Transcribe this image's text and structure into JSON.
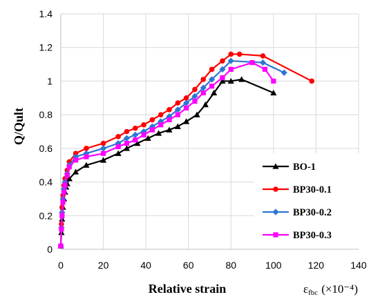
{
  "chart_data": {
    "type": "line",
    "title": "",
    "xlabel": "Relative strain",
    "ylabel": "Q/Qult",
    "xunit": {
      "symbol": "ε",
      "subscript": "fbc",
      "suffix": "(×10⁻⁴)"
    },
    "xlim": [
      0,
      140
    ],
    "ylim": [
      0,
      1.4
    ],
    "xticks": [
      "0",
      "20",
      "40",
      "60",
      "80",
      "100",
      "120",
      "140"
    ],
    "yticks": [
      "0",
      "0.2",
      "0.4",
      "0.6",
      "0.8",
      "1",
      "1.2",
      "1.4"
    ],
    "grid": true,
    "legend_position": "bottom-right",
    "series": [
      {
        "name": "BO-1",
        "color": "#000000",
        "marker": "triangle",
        "x": [
          0,
          0.3,
          0.6,
          1,
          1.5,
          2,
          2.5,
          3,
          4,
          7,
          12,
          20,
          27,
          31,
          36,
          41,
          46,
          51,
          55,
          59,
          64,
          68,
          72,
          76,
          80,
          85,
          100
        ],
        "y": [
          0.02,
          0.1,
          0.18,
          0.25,
          0.3,
          0.34,
          0.37,
          0.39,
          0.42,
          0.46,
          0.5,
          0.53,
          0.57,
          0.6,
          0.63,
          0.66,
          0.69,
          0.71,
          0.73,
          0.76,
          0.8,
          0.86,
          0.93,
          1.0,
          1.0,
          1.01,
          0.93
        ]
      },
      {
        "name": "BP30-0.1",
        "color": "#ff0000",
        "marker": "circle",
        "x": [
          0,
          0.3,
          0.6,
          1,
          1.5,
          2,
          3,
          4,
          7,
          12,
          20,
          27,
          31,
          35,
          39,
          43,
          47,
          51,
          55,
          59,
          63,
          67,
          71,
          76,
          80,
          84,
          95,
          118
        ],
        "y": [
          0.02,
          0.15,
          0.25,
          0.32,
          0.38,
          0.42,
          0.47,
          0.52,
          0.57,
          0.6,
          0.63,
          0.67,
          0.7,
          0.72,
          0.74,
          0.77,
          0.8,
          0.83,
          0.87,
          0.9,
          0.95,
          1.01,
          1.07,
          1.12,
          1.16,
          1.16,
          1.15,
          1.0
        ]
      },
      {
        "name": "BP30-0.2",
        "color": "#2e75d2",
        "marker": "diamond",
        "x": [
          0,
          0.3,
          0.6,
          1,
          1.5,
          2,
          3,
          4,
          7,
          12,
          20,
          27,
          31,
          35,
          39,
          43,
          47,
          51,
          55,
          59,
          63,
          67,
          71,
          76,
          80,
          95,
          105
        ],
        "y": [
          0.02,
          0.13,
          0.22,
          0.3,
          0.36,
          0.4,
          0.45,
          0.5,
          0.55,
          0.57,
          0.6,
          0.63,
          0.66,
          0.68,
          0.7,
          0.73,
          0.76,
          0.79,
          0.83,
          0.87,
          0.91,
          0.96,
          1.01,
          1.07,
          1.12,
          1.11,
          1.05
        ]
      },
      {
        "name": "BP30-0.3",
        "color": "#ff00ff",
        "marker": "square",
        "x": [
          0,
          0.3,
          0.6,
          1,
          1.5,
          2,
          3,
          4,
          7,
          12,
          20,
          27,
          31,
          35,
          39,
          43,
          47,
          51,
          55,
          59,
          63,
          67,
          71,
          76,
          80,
          90,
          96,
          100
        ],
        "y": [
          0.02,
          0.12,
          0.2,
          0.28,
          0.34,
          0.38,
          0.44,
          0.49,
          0.53,
          0.55,
          0.57,
          0.61,
          0.63,
          0.65,
          0.68,
          0.71,
          0.74,
          0.77,
          0.8,
          0.84,
          0.88,
          0.93,
          0.97,
          1.02,
          1.07,
          1.11,
          1.07,
          1.0
        ]
      }
    ]
  }
}
